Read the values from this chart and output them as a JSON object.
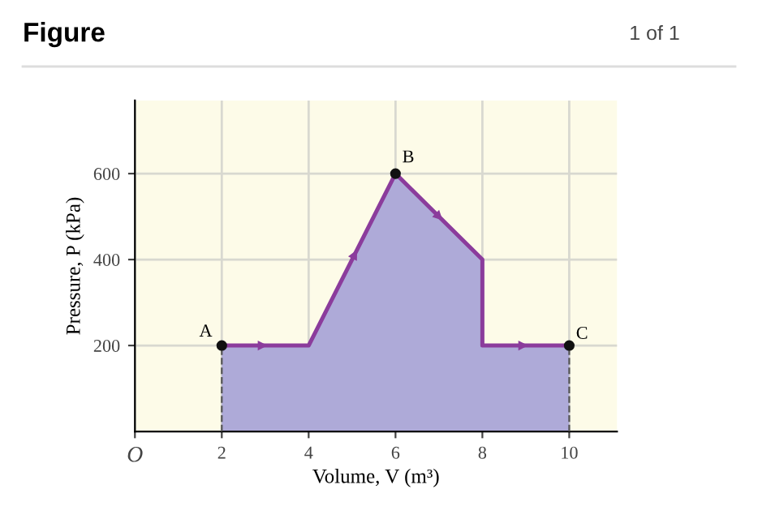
{
  "chart_data": {
    "type": "area",
    "title": "Figure",
    "xlabel": "Volume, V (m³)",
    "ylabel": "Pressure, P (kPa)",
    "series": [
      {
        "color": "#8b3c9c",
        "x": [
          2,
          4,
          6,
          8,
          8,
          10
        ],
        "values": [
          200,
          200,
          600,
          400,
          200,
          200
        ],
        "marker": "none"
      },
      {
        "type": "scatter",
        "color": "#111111",
        "x": [
          2,
          6,
          10
        ],
        "values": [
          200,
          600,
          200
        ],
        "marker": "circle"
      }
    ],
    "xlim": [
      0,
      11.1
    ],
    "ylim": [
      0,
      770
    ],
    "xticks": [
      {
        "value": 0,
        "label": "O"
      },
      2,
      4,
      6,
      8,
      10
    ],
    "yticks": [
      200,
      400,
      600
    ],
    "grid": true,
    "annotations": [
      {
        "text": "A",
        "x": 2,
        "y": 200
      },
      {
        "text": "B",
        "x": 6,
        "y": 600
      },
      {
        "text": "C",
        "x": 10,
        "y": 200
      },
      "1 of 1"
    ]
  }
}
